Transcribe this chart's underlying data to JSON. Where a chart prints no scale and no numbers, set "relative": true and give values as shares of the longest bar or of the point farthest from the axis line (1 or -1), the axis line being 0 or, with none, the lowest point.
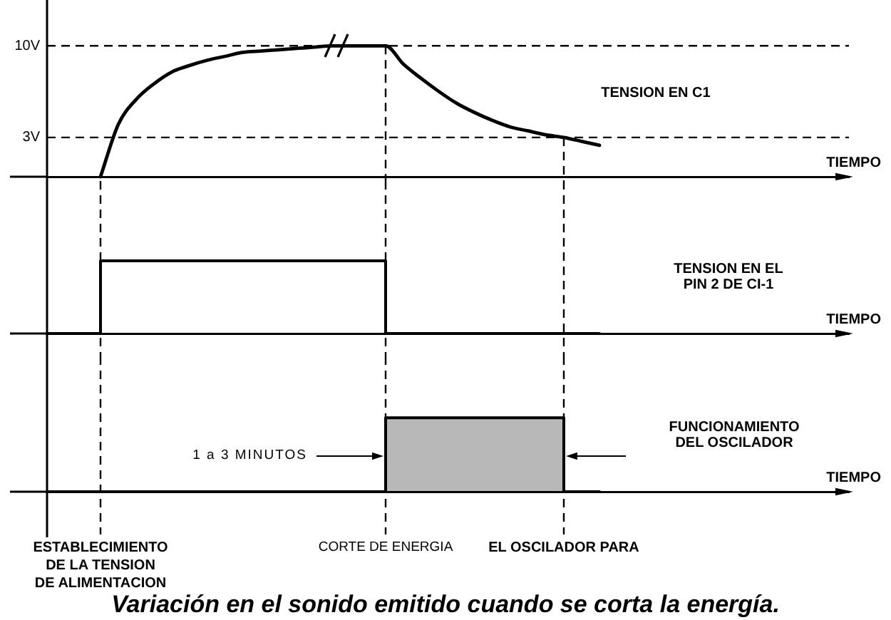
{
  "chart_data": [
    {
      "type": "line",
      "categories": [
        null,
        null,
        null,
        "ESTABLECIMIENTO DE LA TENSION DE ALIMENTACION",
        null,
        null,
        null,
        null,
        null,
        null,
        null,
        null,
        null,
        null,
        null,
        null,
        null,
        null,
        null,
        "CORTE DE ENERGIA",
        null,
        null,
        null,
        null,
        null,
        null,
        null,
        null,
        null,
        "EL OSCILADOR PARA",
        null,
        null,
        null,
        null,
        null,
        null,
        null,
        null,
        null,
        null,
        null,
        null,
        null,
        null,
        null,
        null
      ],
      "series": [
        {
          "name": "TENSION EN C1",
          "color": "#000000",
          "values": [
            null,
            null,
            null,
            0,
            4,
            5.9,
            7.1,
            8,
            8.5,
            8.9,
            9.2,
            9.5,
            9.6,
            9.7,
            9.8,
            9.9,
            10,
            10,
            10,
            10,
            8.6,
            7.5,
            6.5,
            5.6,
            4.9,
            4.3,
            3.8,
            3.5,
            3.2,
            3,
            2.7,
            2.4,
            null,
            null,
            null,
            null,
            null,
            null,
            null,
            null,
            null,
            null,
            null,
            null,
            null,
            null
          ]
        }
      ],
      "xlabel": "TIEMPO",
      "ylim": [
        0,
        13.5
      ],
      "yticks": [
        {
          "value": 10,
          "label": "10V"
        },
        {
          "value": 3,
          "label": "3V"
        }
      ],
      "ref_lines": [
        {
          "axis": "y",
          "value": 10,
          "line_style": "dashed"
        },
        {
          "axis": "y",
          "value": 3,
          "line_style": "dashed"
        },
        {
          "axis": "x",
          "value": "CORTE DE ENERGIA",
          "line_style": "dashed"
        },
        {
          "axis": "x",
          "value": "EL OSCILADOR PARA",
          "line_style": "dashed"
        }
      ],
      "tick_labels": "y"
    },
    {
      "type": "step",
      "relative": true,
      "categories": [
        null,
        null,
        null,
        "ESTABLECIMIENTO DE LA TENSION DE ALIMENTACION",
        null,
        null,
        null,
        null,
        null,
        null,
        null,
        null,
        null,
        null,
        null,
        null,
        null,
        null,
        null,
        "CORTE DE ENERGIA",
        null,
        null,
        null,
        null,
        null,
        null,
        null,
        null,
        null,
        "EL OSCILADOR PARA",
        null,
        null,
        null,
        null,
        null,
        null,
        null,
        null,
        null,
        null,
        null,
        null,
        null,
        null,
        null,
        null
      ],
      "series": [
        {
          "name": "TENSION EN EL PIN 2 DE CI-1",
          "color": "#000000",
          "values": [
            0,
            0,
            0,
            1,
            1,
            1,
            1,
            1,
            1,
            1,
            1,
            1,
            1,
            1,
            1,
            1,
            1,
            1,
            1,
            0,
            0,
            0,
            0,
            0,
            0,
            0,
            0,
            0,
            0,
            0,
            0,
            0,
            null,
            null,
            null,
            null,
            null,
            null,
            null,
            null,
            null,
            null,
            null,
            null,
            null,
            null
          ]
        }
      ],
      "xlabel": "TIEMPO",
      "ref_lines": [
        {
          "axis": "x",
          "value": "ESTABLECIMIENTO DE LA TENSION DE ALIMENTACION",
          "line_style": "dashed"
        },
        {
          "axis": "x",
          "value": "CORTE DE ENERGIA",
          "line_style": "dashed"
        },
        {
          "axis": "x",
          "value": "EL OSCILADOR PARA",
          "line_style": "dashed"
        }
      ],
      "tick_labels": false
    },
    {
      "type": "step",
      "relative": true,
      "categories": [
        null,
        null,
        null,
        "ESTABLECIMIENTO DE LA TENSION DE ALIMENTACION",
        null,
        null,
        null,
        null,
        null,
        null,
        null,
        null,
        null,
        null,
        null,
        null,
        null,
        null,
        null,
        "CORTE DE ENERGIA",
        null,
        null,
        null,
        null,
        null,
        null,
        null,
        null,
        null,
        "EL OSCILADOR PARA",
        null,
        null,
        null,
        null,
        null,
        null,
        null,
        null,
        null,
        null,
        null,
        null,
        null,
        null,
        null,
        null
      ],
      "series": [
        {
          "name": "FUNCIONAMIENTO DEL OSCILADOR",
          "type": "area",
          "color": "#000000",
          "values": [
            0,
            0,
            0,
            0,
            0,
            0,
            0,
            0,
            0,
            0,
            0,
            0,
            0,
            0,
            0,
            0,
            0,
            0,
            0,
            1,
            1,
            1,
            1,
            1,
            1,
            1,
            1,
            1,
            1,
            0,
            0,
            0,
            null,
            null,
            null,
            null,
            null,
            null,
            null,
            null,
            null,
            null,
            null,
            null,
            null,
            null
          ]
        }
      ],
      "xlabel": "TIEMPO",
      "ref_lines": [
        {
          "axis": "x",
          "value": "ESTABLECIMIENTO DE LA TENSION DE ALIMENTACION",
          "line_style": "dashed"
        },
        {
          "axis": "x",
          "value": "CORTE DE ENERGIA",
          "line_style": "dashed"
        },
        {
          "axis": "x",
          "value": "EL OSCILADOR PARA",
          "line_style": "dashed"
        }
      ],
      "annotations": [
        "1 a 3 MINUTOS"
      ],
      "title": "Variación en el sonido emitido cuando se corta la energía.",
      "tick_labels": "x"
    }
  ]
}
